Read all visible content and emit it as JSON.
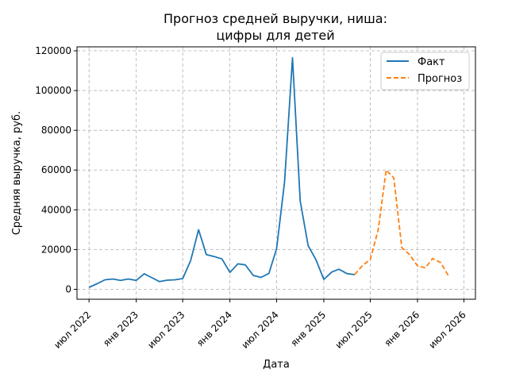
{
  "chart_data": {
    "type": "line",
    "title_line1": "Прогноз средней выручки, ниша:",
    "title_line2": "цифры для детей",
    "xlabel": "Дата",
    "ylabel": "Средняя выручка, руб.",
    "ylim": [
      -5000,
      122000
    ],
    "yticks": [
      0,
      20000,
      40000,
      60000,
      80000,
      100000,
      120000
    ],
    "ytick_labels": [
      "0",
      "20000",
      "40000",
      "60000",
      "80000",
      "100000",
      "120000"
    ],
    "xlim": [
      "2022-05-15",
      "2026-08-15"
    ],
    "xticks": [
      "2022-07-01",
      "2023-01-01",
      "2023-07-01",
      "2024-01-01",
      "2024-07-01",
      "2025-01-01",
      "2025-07-01",
      "2026-01-01",
      "2026-07-01"
    ],
    "xtick_labels": [
      "июл 2022",
      "янв 2023",
      "июл 2023",
      "янв 2024",
      "июл 2024",
      "янв 2025",
      "июл 2025",
      "янв 2026",
      "июл 2026"
    ],
    "grid": true,
    "legend_position": "top-right",
    "series": [
      {
        "name": "Факт",
        "color": "#1f77b4",
        "style": "solid",
        "x": [
          "2022-07-01",
          "2022-08-01",
          "2022-09-01",
          "2022-10-01",
          "2022-11-01",
          "2022-12-01",
          "2023-01-01",
          "2023-02-01",
          "2023-03-01",
          "2023-04-01",
          "2023-05-01",
          "2023-06-01",
          "2023-07-01",
          "2023-08-01",
          "2023-09-01",
          "2023-10-01",
          "2023-11-01",
          "2023-12-01",
          "2024-01-01",
          "2024-02-01",
          "2024-03-01",
          "2024-04-01",
          "2024-05-01",
          "2024-06-01",
          "2024-07-01",
          "2024-08-01",
          "2024-09-01",
          "2024-10-01",
          "2024-11-01",
          "2024-12-01",
          "2025-01-01",
          "2025-02-01",
          "2025-03-01",
          "2025-04-01",
          "2025-05-01"
        ],
        "y": [
          1000,
          2800,
          4800,
          5200,
          4500,
          5200,
          4500,
          7800,
          6000,
          3900,
          4600,
          4800,
          5400,
          14500,
          30000,
          17500,
          16500,
          15300,
          8500,
          12800,
          12300,
          7000,
          6000,
          8000,
          20500,
          54000,
          116500,
          44500,
          22000,
          15000,
          5000,
          8700,
          10100,
          7900,
          7400
        ]
      },
      {
        "name": "Прогноз",
        "color": "#ff7f0e",
        "style": "dashed",
        "x": [
          "2025-05-01",
          "2025-06-01",
          "2025-07-01",
          "2025-08-01",
          "2025-09-01",
          "2025-10-01",
          "2025-11-01",
          "2025-12-01",
          "2026-01-01",
          "2026-02-01",
          "2026-03-01",
          "2026-04-01",
          "2026-05-01"
        ],
        "y": [
          7400,
          12000,
          15000,
          30000,
          60000,
          56000,
          21000,
          17500,
          11800,
          10800,
          15500,
          13500,
          7000
        ]
      }
    ]
  }
}
